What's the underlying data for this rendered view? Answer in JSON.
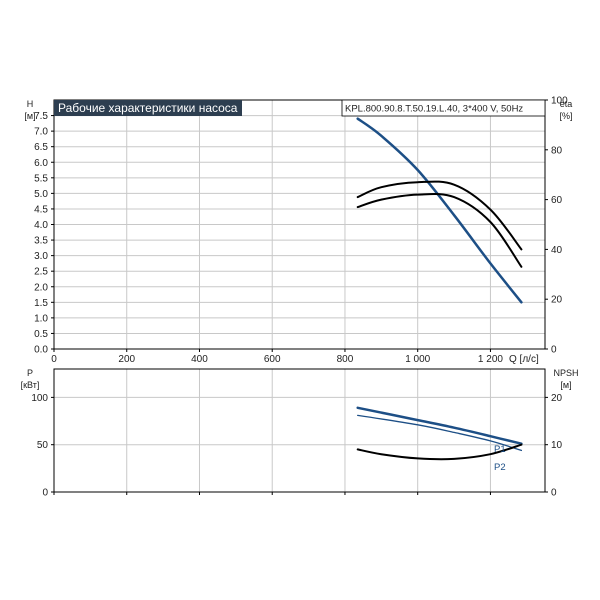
{
  "header": {
    "title": "Рабочие характеристики насоса",
    "model": "KPL.800.90.8.T.50.19.L.40, 3*400 V, 50Hz"
  },
  "colors": {
    "title_bg": "#2d3e50",
    "curve_blue": "#1d4f86",
    "curve_black": "#000000",
    "grid": "#c8c8c8"
  },
  "chart_data": [
    {
      "type": "line",
      "left_axis": {
        "label": "H",
        "unit": "[м]",
        "ylim": [
          0,
          8
        ],
        "ticks": [
          "0.0",
          "0.5",
          "1.0",
          "1.5",
          "2.0",
          "2.5",
          "3.0",
          "3.5",
          "4.0",
          "4.5",
          "5.0",
          "5.5",
          "6.0",
          "6.5",
          "7.0",
          "7.5"
        ]
      },
      "right_axis": {
        "label": "eta",
        "unit": "[%]",
        "ylim": [
          0,
          100
        ],
        "ticks": [
          "0",
          "20",
          "40",
          "60",
          "80",
          "100"
        ]
      },
      "x_axis": {
        "label": "Q [л/с]",
        "xlim": [
          0,
          1350
        ],
        "ticks": [
          "0",
          "200",
          "400",
          "600",
          "800",
          "1 000",
          "1 200"
        ]
      },
      "grid": true,
      "series": [
        {
          "axis": "left",
          "color": "#1d4f86",
          "width": 2.5,
          "x": [
            835,
            900,
            1000,
            1100,
            1200,
            1285
          ],
          "y": [
            7.4,
            6.85,
            5.75,
            4.3,
            2.75,
            1.5
          ]
        },
        {
          "axis": "right",
          "color": "#000000",
          "width": 2,
          "x": [
            835,
            900,
            1000,
            1100,
            1200,
            1285
          ],
          "y": [
            61,
            65,
            67,
            66,
            56,
            40
          ]
        },
        {
          "axis": "right",
          "color": "#000000",
          "width": 2,
          "x": [
            835,
            900,
            1000,
            1100,
            1200,
            1285
          ],
          "y": [
            57,
            60,
            62,
            61,
            51,
            33
          ]
        }
      ]
    },
    {
      "type": "line",
      "left_axis": {
        "label": "P",
        "unit": "[кВт]",
        "ylim": [
          0,
          130
        ],
        "ticks": [
          "0",
          "50",
          "100"
        ]
      },
      "right_axis": {
        "label": "NPSH",
        "unit": "[м]",
        "ylim": [
          0,
          26
        ],
        "ticks": [
          "0",
          "10",
          "20"
        ]
      },
      "x_axis": {
        "xlim": [
          0,
          1350
        ]
      },
      "grid": true,
      "series": [
        {
          "name": "P1",
          "axis": "left",
          "color": "#1d4f86",
          "width": 2.5,
          "x": [
            835,
            1000,
            1100,
            1200,
            1285
          ],
          "y": [
            89,
            76,
            68,
            59,
            51
          ]
        },
        {
          "name": "P2",
          "axis": "left",
          "color": "#1d4f86",
          "width": 1.3,
          "x": [
            835,
            1000,
            1100,
            1200,
            1285
          ],
          "y": [
            81,
            71,
            63,
            54,
            44
          ]
        },
        {
          "axis": "right",
          "color": "#000000",
          "width": 2,
          "x": [
            835,
            900,
            1000,
            1100,
            1200,
            1285
          ],
          "y": [
            9.0,
            8.0,
            7.1,
            7.0,
            8.0,
            10.0
          ]
        }
      ]
    }
  ]
}
